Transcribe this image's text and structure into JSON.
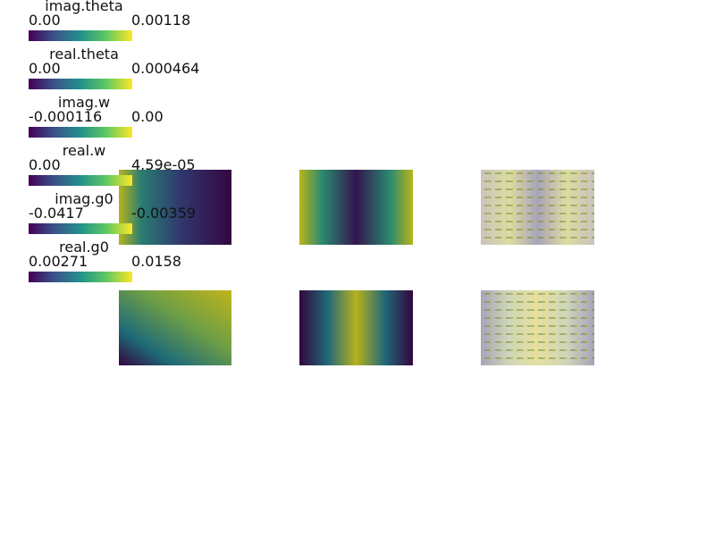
{
  "colorbars": [
    {
      "title": "imag.theta",
      "min": "0.00",
      "max": "0.00118"
    },
    {
      "title": "real.theta",
      "min": "0.00",
      "max": "0.000464"
    },
    {
      "title": "imag.w",
      "min": "-0.000116",
      "max": "0.00"
    },
    {
      "title": "real.w",
      "min": "0.00",
      "max": "4.59e-05"
    },
    {
      "title": "imag.g0",
      "min": "-0.0417",
      "max": "-0.00359"
    },
    {
      "title": "real.g0",
      "min": "0.00271",
      "max": "0.0158"
    }
  ]
}
